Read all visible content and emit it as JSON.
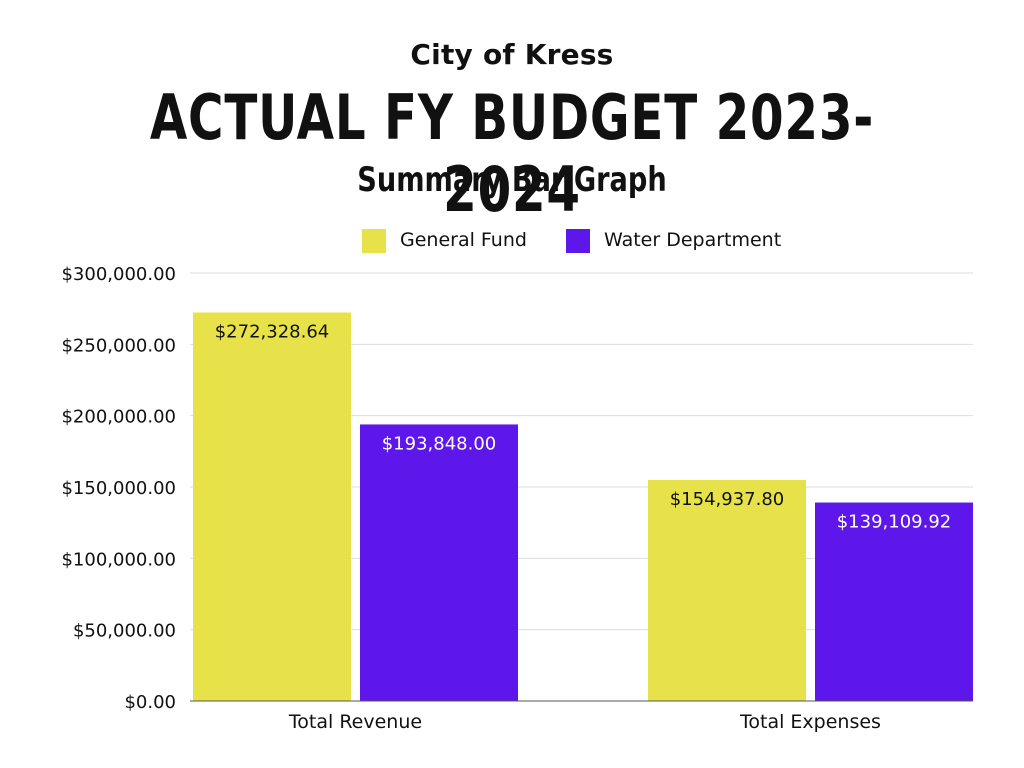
{
  "header": {
    "city": "City of Kress",
    "title": "ACTUAL FY BUDGET 2023-2024",
    "subtitle": "Summary Bar Graph"
  },
  "chart_data": {
    "type": "bar",
    "categories": [
      "Total Revenue",
      "Total Expenses"
    ],
    "series": [
      {
        "name": "General Fund",
        "color": "#E8E24A",
        "label_color": "#111111",
        "values": [
          272328.64,
          154937.8
        ],
        "labels": [
          "$272,328.64",
          "$154,937.80"
        ]
      },
      {
        "name": "Water Department",
        "color": "#5E17EB",
        "label_color": "#ffffff",
        "values": [
          193848.0,
          139109.92
        ],
        "labels": [
          "$193,848.00",
          "$139,109.92"
        ]
      }
    ],
    "ylim": [
      0,
      300000
    ],
    "yticks": [
      0,
      50000,
      100000,
      150000,
      200000,
      250000,
      300000
    ],
    "ytick_labels": [
      "$0.00",
      "$50,000.00",
      "$100,000.00",
      "$150,000.00",
      "$200,000.00",
      "$250,000.00",
      "$300,000.00"
    ],
    "xlabel": "",
    "ylabel": "",
    "grid": true,
    "legend_position": "top-center",
    "grid_color": "#dddddd",
    "axis_color": "#555555"
  }
}
